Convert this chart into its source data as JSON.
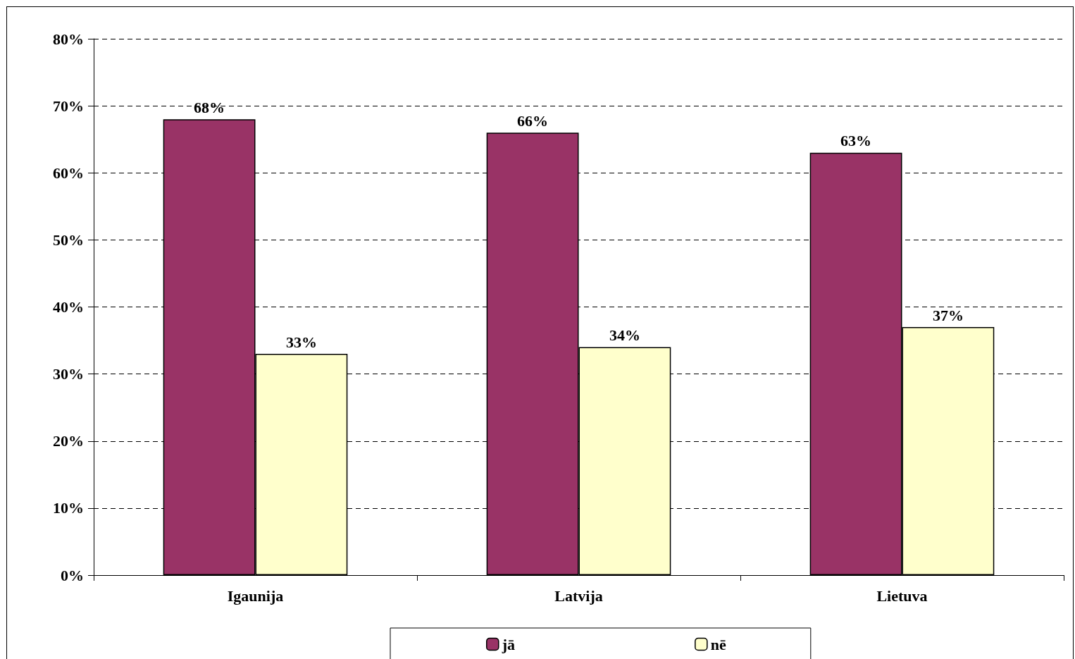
{
  "chart_data": {
    "type": "bar",
    "categories": [
      "Igaunija",
      "Latvija",
      "Lietuva"
    ],
    "series": [
      {
        "name": "jā",
        "color": "#993366",
        "values": [
          68,
          66,
          63
        ],
        "value_labels": [
          "68%",
          "66%",
          "63%"
        ]
      },
      {
        "name": "nē",
        "color": "#ffffcc",
        "values": [
          33,
          34,
          37
        ],
        "value_labels": [
          "33%",
          "34%",
          "37%"
        ]
      }
    ],
    "ylim": [
      0,
      80
    ],
    "yticks": [
      {
        "value": 0,
        "label": "0%"
      },
      {
        "value": 10,
        "label": "10%"
      },
      {
        "value": 20,
        "label": "20%"
      },
      {
        "value": 30,
        "label": "30%"
      },
      {
        "value": 40,
        "label": "40%"
      },
      {
        "value": 50,
        "label": "50%"
      },
      {
        "value": 60,
        "label": "60%"
      },
      {
        "value": 70,
        "label": "70%"
      },
      {
        "value": 80,
        "label": "80%"
      }
    ],
    "grid": "y",
    "legend": "bottom"
  }
}
